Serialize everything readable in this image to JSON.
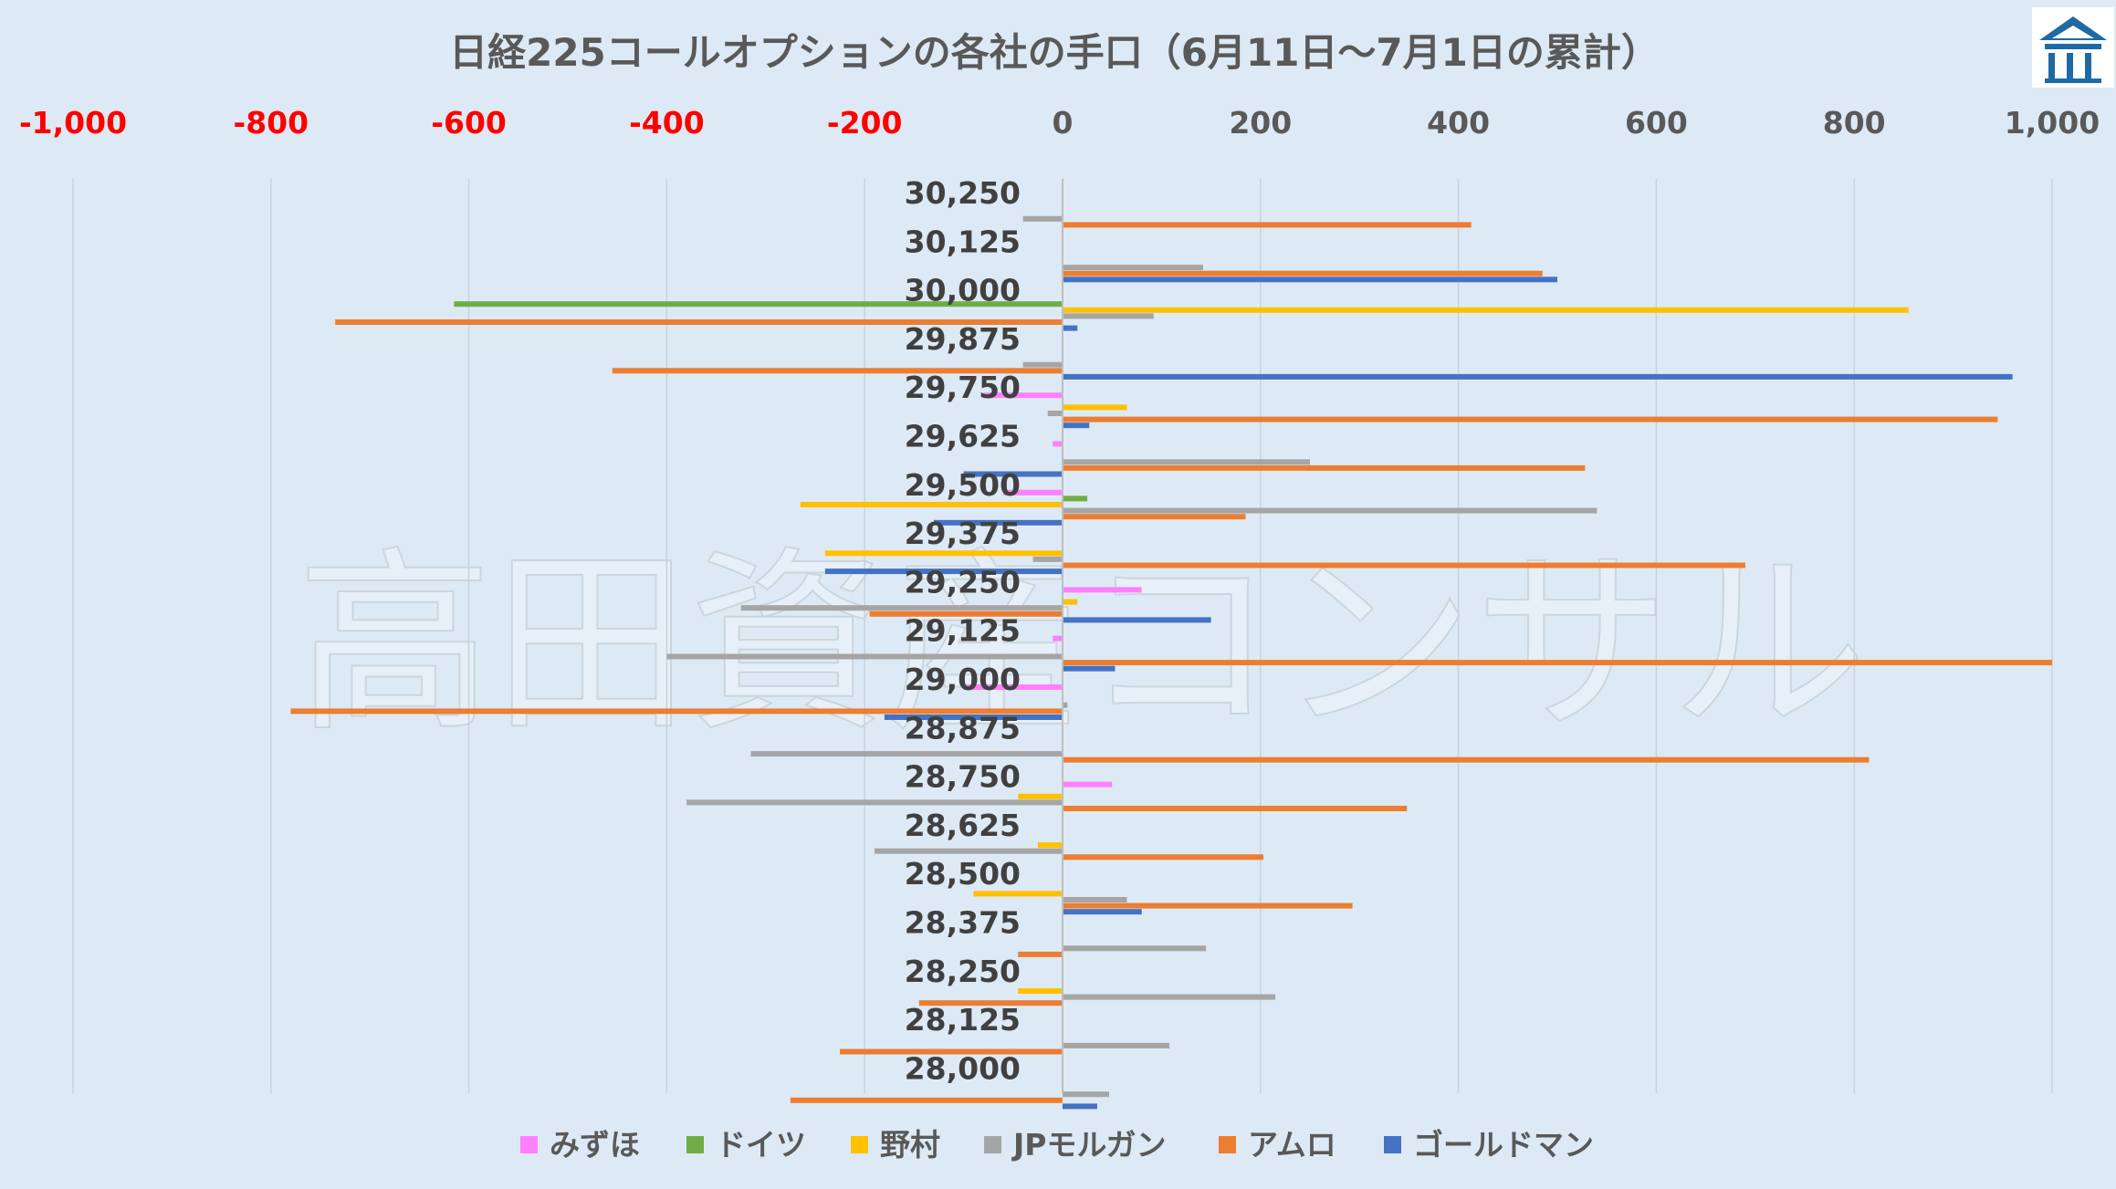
{
  "chart_data": {
    "type": "bar",
    "orientation": "horizontal",
    "title": "日経225コールオプションの各社の手口（6月11日〜7月1日の累計）",
    "watermark": "高田資産コンサル",
    "x_ticks": [
      "-1,000",
      "-800",
      "-600",
      "-400",
      "-200",
      "0",
      "200",
      "400",
      "600",
      "800",
      "1,000"
    ],
    "xlim": [
      -1000,
      1000
    ],
    "grid": true,
    "legend_position": "bottom",
    "categories": [
      "30,250",
      "30,125",
      "30,000",
      "29,875",
      "29,750",
      "29,625",
      "29,500",
      "29,375",
      "29,250",
      "29,125",
      "29,000",
      "28,875",
      "28,750",
      "28,625",
      "28,500",
      "28,375",
      "28,250",
      "28,125",
      "28,000"
    ],
    "series": [
      {
        "name": "みずほ",
        "color": "#ff80ff",
        "values": [
          0,
          0,
          0,
          0,
          -80,
          -10,
          -60,
          0,
          80,
          -10,
          -100,
          0,
          50,
          0,
          0,
          0,
          0,
          0,
          0
        ]
      },
      {
        "name": "ドイツ",
        "color": "#70ad47",
        "values": [
          0,
          0,
          -615,
          0,
          0,
          0,
          25,
          0,
          0,
          0,
          0,
          0,
          0,
          0,
          0,
          0,
          0,
          0,
          0
        ]
      },
      {
        "name": "野村",
        "color": "#ffc000",
        "values": [
          0,
          0,
          855,
          0,
          65,
          0,
          -265,
          -240,
          15,
          0,
          0,
          0,
          -45,
          -25,
          -90,
          0,
          -45,
          0,
          0
        ]
      },
      {
        "name": "JPモルガン",
        "color": "#a5a5a5",
        "values": [
          -40,
          142,
          92,
          -40,
          -15,
          250,
          540,
          -30,
          -325,
          -400,
          5,
          -315,
          -380,
          -190,
          65,
          145,
          215,
          108,
          47
        ]
      },
      {
        "name": "アムロ",
        "color": "#ed7d31",
        "values": [
          413,
          485,
          -735,
          -455,
          945,
          528,
          185,
          690,
          -195,
          1000,
          -780,
          815,
          348,
          203,
          293,
          -45,
          -145,
          -225,
          -275
        ]
      },
      {
        "name": "ゴールドマン",
        "color": "#4472c4",
        "values": [
          0,
          500,
          15,
          960,
          27,
          -100,
          -130,
          -240,
          150,
          53,
          -180,
          0,
          0,
          0,
          80,
          0,
          0,
          0,
          35
        ]
      }
    ]
  },
  "colors": {
    "background": "#ddeaf5",
    "negative_tick": "#ff0000",
    "positive_tick": "#595959",
    "gridline": "#c8d2dc",
    "logo": "#1f6aa5"
  },
  "logo_icon": "house-logo-icon"
}
